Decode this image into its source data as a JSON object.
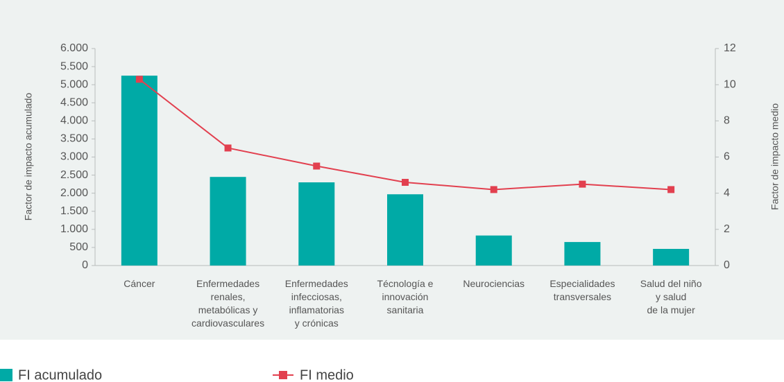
{
  "chart_data": {
    "type": "bar-line",
    "categories": [
      "Cáncer",
      "Enfermedades\nrenales,\nmetabólicas y\ncardiovasculares",
      "Enfermedades\ninfecciosas,\ninflamatorias\ny crónicas",
      "Técnología e\ninnovación\nsanitaria",
      "Neurociencias",
      "Especialidades\ntransversales",
      "Salud del niño\ny salud\nde la mujer"
    ],
    "series": [
      {
        "name": "FI acumulado",
        "type": "bar",
        "color": "#00aaa6",
        "values": [
          5250,
          2450,
          2300,
          1970,
          830,
          650,
          460
        ]
      },
      {
        "name": "FI medio",
        "type": "line",
        "axis": "y2",
        "color": "#e2404f",
        "values": [
          10.3,
          6.5,
          5.5,
          4.6,
          4.2,
          4.5,
          4.2
        ]
      }
    ],
    "ylabel": "Factor de impacto acumulado",
    "y2label": "Factor de impacto medio",
    "ylim": [
      0,
      6000
    ],
    "yticks": [
      0,
      500,
      {
        "value": 1000,
        "label": "1.000"
      },
      {
        "value": 1500,
        "label": "1.500"
      },
      {
        "value": 2000,
        "label": "2.000"
      },
      {
        "value": 2500,
        "label": "2.500"
      },
      {
        "value": 3000,
        "label": "3.000"
      },
      {
        "value": 3500,
        "label": "3.500"
      },
      {
        "value": 4000,
        "label": "4.000"
      },
      {
        "value": 4500,
        "label": "4.500"
      },
      {
        "value": 5000,
        "label": "5.000"
      },
      {
        "value": 5500,
        "label": "5.500"
      },
      {
        "value": 6000,
        "label": "6.000"
      }
    ],
    "y2lim": [
      0,
      12
    ],
    "y2ticks": [
      0,
      2,
      4,
      6,
      8,
      10,
      12
    ],
    "grid": false,
    "legend": "bottom"
  }
}
